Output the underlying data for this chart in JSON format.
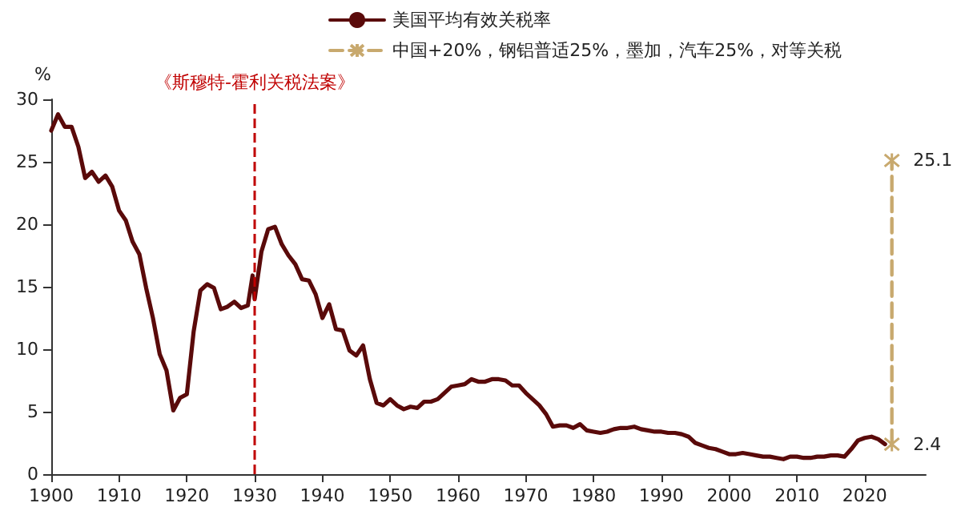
{
  "chart_data": {
    "type": "line",
    "ylabel": "%",
    "xlim": [
      1900,
      2029
    ],
    "xticks": [
      1900,
      1910,
      1920,
      1930,
      1940,
      1950,
      1960,
      1970,
      1980,
      1990,
      2000,
      2010,
      2020
    ],
    "ylim": [
      0,
      30
    ],
    "yticks": [
      0,
      5,
      10,
      15,
      20,
      25,
      30
    ],
    "grid": false,
    "legend": "top",
    "line_style": "solid",
    "marker": "none",
    "ref_lines": [
      {
        "axis": "x",
        "value": 1930,
        "label": "《斯穆特-霍利关税法案》",
        "color": "#c00000",
        "line_style": "dashed"
      }
    ],
    "series": [
      {
        "name": "美国平均有效关税率",
        "color": "#5a0a0a",
        "x": [
          1900,
          1901,
          1902,
          1903,
          1904,
          1905,
          1906,
          1907,
          1908,
          1909,
          1910,
          1911,
          1912,
          1913,
          1914,
          1915,
          1916,
          1917,
          1918,
          1919,
          1920,
          1921,
          1922,
          1923,
          1924,
          1925,
          1926,
          1927,
          1928,
          1929,
          1929.7,
          1930,
          1931,
          1932,
          1933,
          1934,
          1935,
          1936,
          1937,
          1938,
          1939,
          1940,
          1941,
          1942,
          1943,
          1944,
          1945,
          1946,
          1947,
          1948,
          1949,
          1950,
          1951,
          1952,
          1953,
          1954,
          1955,
          1956,
          1957,
          1958,
          1959,
          1960,
          1961,
          1962,
          1963,
          1964,
          1965,
          1966,
          1967,
          1968,
          1969,
          1970,
          1971,
          1972,
          1973,
          1974,
          1975,
          1976,
          1977,
          1978,
          1979,
          1980,
          1981,
          1982,
          1983,
          1984,
          1985,
          1986,
          1987,
          1988,
          1989,
          1990,
          1991,
          1992,
          1993,
          1994,
          1995,
          1996,
          1997,
          1998,
          1999,
          2000,
          2001,
          2002,
          2003,
          2004,
          2005,
          2006,
          2007,
          2008,
          2009,
          2010,
          2011,
          2012,
          2013,
          2014,
          2015,
          2016,
          2017,
          2018,
          2019,
          2020,
          2021,
          2022,
          2023
        ],
        "values": [
          27.5,
          28.8,
          27.8,
          27.8,
          26.2,
          23.7,
          24.2,
          23.4,
          23.9,
          23.0,
          21.1,
          20.3,
          18.6,
          17.6,
          14.9,
          12.5,
          9.6,
          8.3,
          5.1,
          6.1,
          6.4,
          11.4,
          14.7,
          15.2,
          14.9,
          13.2,
          13.4,
          13.8,
          13.3,
          13.5,
          15.9,
          14.0,
          17.8,
          19.6,
          19.8,
          18.4,
          17.5,
          16.8,
          15.6,
          15.5,
          14.4,
          12.5,
          13.6,
          11.6,
          11.5,
          9.9,
          9.5,
          10.3,
          7.6,
          5.7,
          5.5,
          6.0,
          5.5,
          5.2,
          5.4,
          5.3,
          5.8,
          5.8,
          6.0,
          6.5,
          7.0,
          7.1,
          7.2,
          7.6,
          7.4,
          7.4,
          7.6,
          7.6,
          7.5,
          7.1,
          7.1,
          6.5,
          6.0,
          5.5,
          4.8,
          3.8,
          3.9,
          3.9,
          3.7,
          4.0,
          3.5,
          3.4,
          3.3,
          3.4,
          3.6,
          3.7,
          3.7,
          3.8,
          3.6,
          3.5,
          3.4,
          3.4,
          3.3,
          3.3,
          3.2,
          3.0,
          2.5,
          2.3,
          2.1,
          2.0,
          1.8,
          1.6,
          1.6,
          1.7,
          1.6,
          1.5,
          1.4,
          1.4,
          1.3,
          1.2,
          1.4,
          1.4,
          1.3,
          1.3,
          1.4,
          1.4,
          1.5,
          1.5,
          1.4,
          2.0,
          2.7,
          2.9,
          3.0,
          2.8,
          2.4
        ]
      },
      {
        "name": "中国+20%，钢铝普适25%，墨加，汽车25%，对等关税",
        "color": "#c8a96e",
        "line_style": "dashed",
        "marker": "cross",
        "data_labels": true,
        "x": [
          2024,
          2024
        ],
        "values": [
          2.4,
          25.1
        ]
      }
    ]
  }
}
